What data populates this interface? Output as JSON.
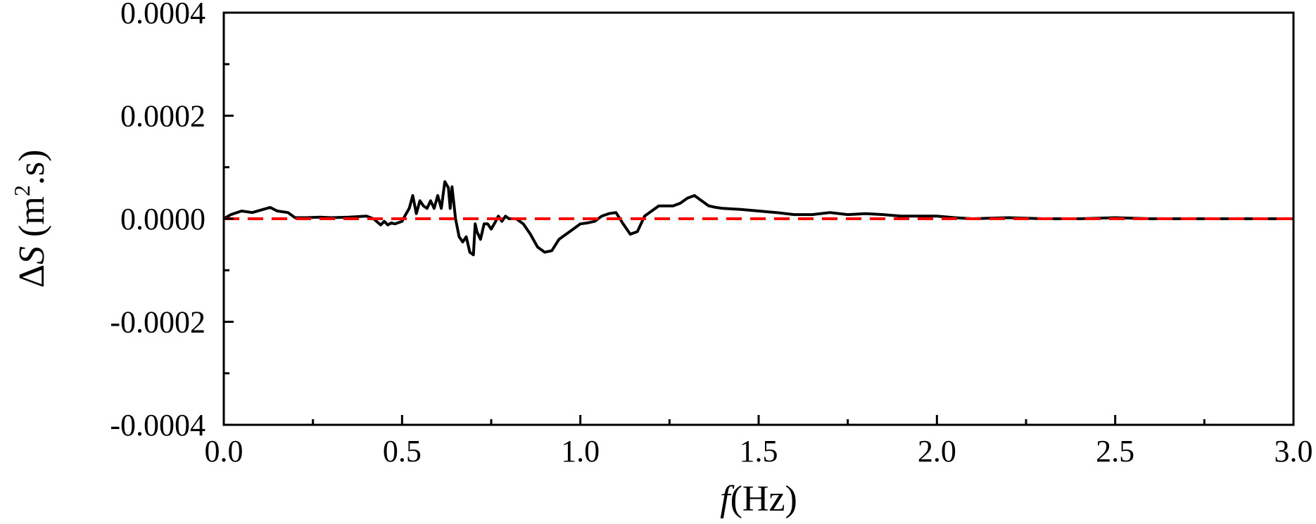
{
  "chart_data": {
    "type": "line",
    "title": "",
    "xlabel": {
      "symbol": "f",
      "unit": "(Hz)"
    },
    "ylabel": {
      "prefix": "Δ",
      "symbol": "S",
      "unit_open": " (m",
      "unit_exp": "2",
      "unit_close": ".s)"
    },
    "xlim": [
      0.0,
      3.0
    ],
    "ylim": [
      -0.0004,
      0.0004
    ],
    "x_ticks": [
      "0.0",
      "0.5",
      "1.0",
      "1.5",
      "2.0",
      "2.5",
      "3.0"
    ],
    "x_tick_values": [
      0.0,
      0.5,
      1.0,
      1.5,
      2.0,
      2.5,
      3.0
    ],
    "x_minor_tick_values": [
      0.25,
      0.75,
      1.25,
      1.75,
      2.25,
      2.75
    ],
    "y_ticks": [
      "0.0004",
      "0.0002",
      "0.0000",
      "-0.0002",
      "-0.0004"
    ],
    "y_tick_values": [
      0.0004,
      0.0002,
      0.0,
      -0.0002,
      -0.0004
    ],
    "y_minor_tick_values": [
      0.0003,
      0.0001,
      -0.0001,
      -0.0003
    ],
    "grid": false,
    "legend": "none",
    "series": [
      {
        "style": "solid",
        "color": "#000000",
        "x": [
          0.0,
          0.02,
          0.05,
          0.08,
          0.11,
          0.13,
          0.15,
          0.18,
          0.2,
          0.23,
          0.27,
          0.3,
          0.35,
          0.4,
          0.42,
          0.44,
          0.45,
          0.46,
          0.47,
          0.48,
          0.5,
          0.51,
          0.52,
          0.53,
          0.54,
          0.55,
          0.56,
          0.57,
          0.58,
          0.59,
          0.6,
          0.61,
          0.62,
          0.63,
          0.635,
          0.64,
          0.65,
          0.66,
          0.67,
          0.68,
          0.69,
          0.7,
          0.705,
          0.71,
          0.72,
          0.73,
          0.74,
          0.75,
          0.76,
          0.77,
          0.78,
          0.79,
          0.8,
          0.82,
          0.84,
          0.86,
          0.88,
          0.9,
          0.92,
          0.94,
          0.96,
          0.98,
          1.0,
          1.02,
          1.04,
          1.06,
          1.08,
          1.1,
          1.12,
          1.14,
          1.16,
          1.18,
          1.2,
          1.22,
          1.24,
          1.26,
          1.28,
          1.3,
          1.32,
          1.34,
          1.36,
          1.38,
          1.4,
          1.45,
          1.5,
          1.55,
          1.6,
          1.65,
          1.7,
          1.75,
          1.8,
          1.85,
          1.9,
          1.95,
          2.0,
          2.05,
          2.1,
          2.2,
          2.3,
          2.4,
          2.5,
          2.6,
          2.7,
          2.8,
          2.9,
          3.0
        ],
        "y": [
          0.0,
          8e-06,
          1.5e-05,
          1.2e-05,
          1.8e-05,
          2.2e-05,
          1.5e-05,
          1.2e-05,
          2e-06,
          2e-06,
          3e-06,
          2e-06,
          3e-06,
          5e-06,
          0.0,
          -1.2e-05,
          -5e-06,
          -1.2e-05,
          -8e-06,
          -1e-05,
          -5e-06,
          8e-06,
          2e-05,
          4.5e-05,
          1e-05,
          3.5e-05,
          2.5e-05,
          2e-05,
          3.5e-05,
          2e-05,
          4.5e-05,
          2e-05,
          7.2e-05,
          6e-05,
          2e-05,
          6.2e-05,
          0.0,
          -3.5e-05,
          -4.5e-05,
          -3.5e-05,
          -6.5e-05,
          -7e-05,
          -1e-05,
          -2.5e-05,
          -4e-05,
          -1e-05,
          -1e-05,
          -2e-05,
          -8e-06,
          5e-06,
          -5e-06,
          5e-06,
          0.0,
          0.0,
          -1e-05,
          -3e-05,
          -5.5e-05,
          -6.5e-05,
          -6.2e-05,
          -4e-05,
          -3e-05,
          -2e-05,
          -1e-05,
          -8e-06,
          -5e-06,
          5e-06,
          1e-05,
          1.2e-05,
          -1e-05,
          -3e-05,
          -2.5e-05,
          5e-06,
          1.5e-05,
          2.5e-05,
          2.5e-05,
          2.5e-05,
          3e-05,
          4e-05,
          4.5e-05,
          3.5e-05,
          2.5e-05,
          2.2e-05,
          2e-05,
          1.8e-05,
          1.5e-05,
          1.2e-05,
          8e-06,
          8e-06,
          1.2e-05,
          8e-06,
          1e-05,
          8e-06,
          5e-06,
          5e-06,
          5e-06,
          2e-06,
          0.0,
          2e-06,
          0.0,
          0.0,
          2e-06,
          0.0,
          0.0,
          0.0,
          0.0,
          0.0
        ]
      },
      {
        "style": "dashed",
        "color": "#ff0000",
        "x": [
          0.0,
          3.0
        ],
        "y": [
          0.0,
          0.0
        ]
      }
    ]
  }
}
